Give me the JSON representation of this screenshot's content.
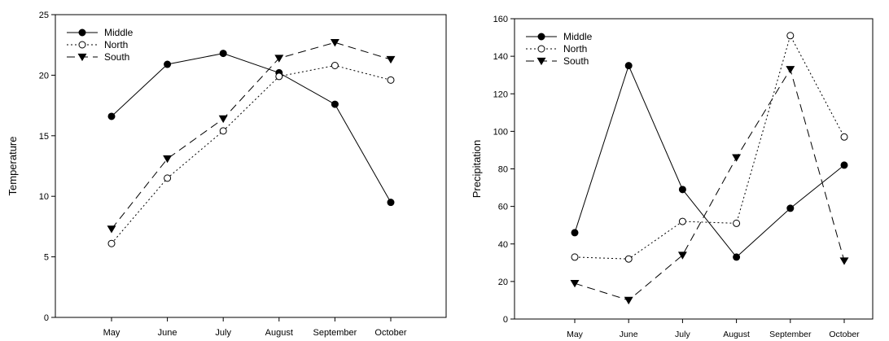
{
  "chart_data": [
    {
      "type": "line",
      "title": "",
      "xlabel": "",
      "ylabel": "Temperature",
      "categories": [
        "May",
        "June",
        "July",
        "August",
        "September",
        "October"
      ],
      "ylim": [
        0,
        25
      ],
      "yticks": [
        0,
        5,
        10,
        15,
        20,
        25
      ],
      "grid": false,
      "legend": "top-left",
      "series": [
        {
          "name": "Middle",
          "style": "solid",
          "marker": "filled-circle",
          "values": [
            16.6,
            20.9,
            21.8,
            20.2,
            17.6,
            9.5
          ]
        },
        {
          "name": "North",
          "style": "dotted",
          "marker": "open-circle",
          "values": [
            6.1,
            11.5,
            15.4,
            19.9,
            20.8,
            19.6
          ]
        },
        {
          "name": "South",
          "style": "dashed",
          "marker": "filled-triangle-down",
          "values": [
            7.3,
            13.1,
            16.4,
            21.4,
            22.7,
            21.3
          ]
        }
      ]
    },
    {
      "type": "line",
      "title": "",
      "xlabel": "",
      "ylabel": "Precipitation",
      "categories": [
        "May",
        "June",
        "July",
        "August",
        "September",
        "October"
      ],
      "ylim": [
        0,
        160
      ],
      "yticks": [
        0,
        20,
        40,
        60,
        80,
        100,
        120,
        140,
        160
      ],
      "grid": false,
      "legend": "top-left",
      "series": [
        {
          "name": "Middle",
          "style": "solid",
          "marker": "filled-circle",
          "values": [
            46,
            135,
            69,
            33,
            59,
            82
          ]
        },
        {
          "name": "North",
          "style": "dotted",
          "marker": "open-circle",
          "values": [
            33,
            32,
            52,
            51,
            151,
            97
          ]
        },
        {
          "name": "South",
          "style": "dashed",
          "marker": "filled-triangle-down",
          "values": [
            19,
            10,
            34,
            86,
            133,
            31
          ]
        }
      ]
    }
  ]
}
